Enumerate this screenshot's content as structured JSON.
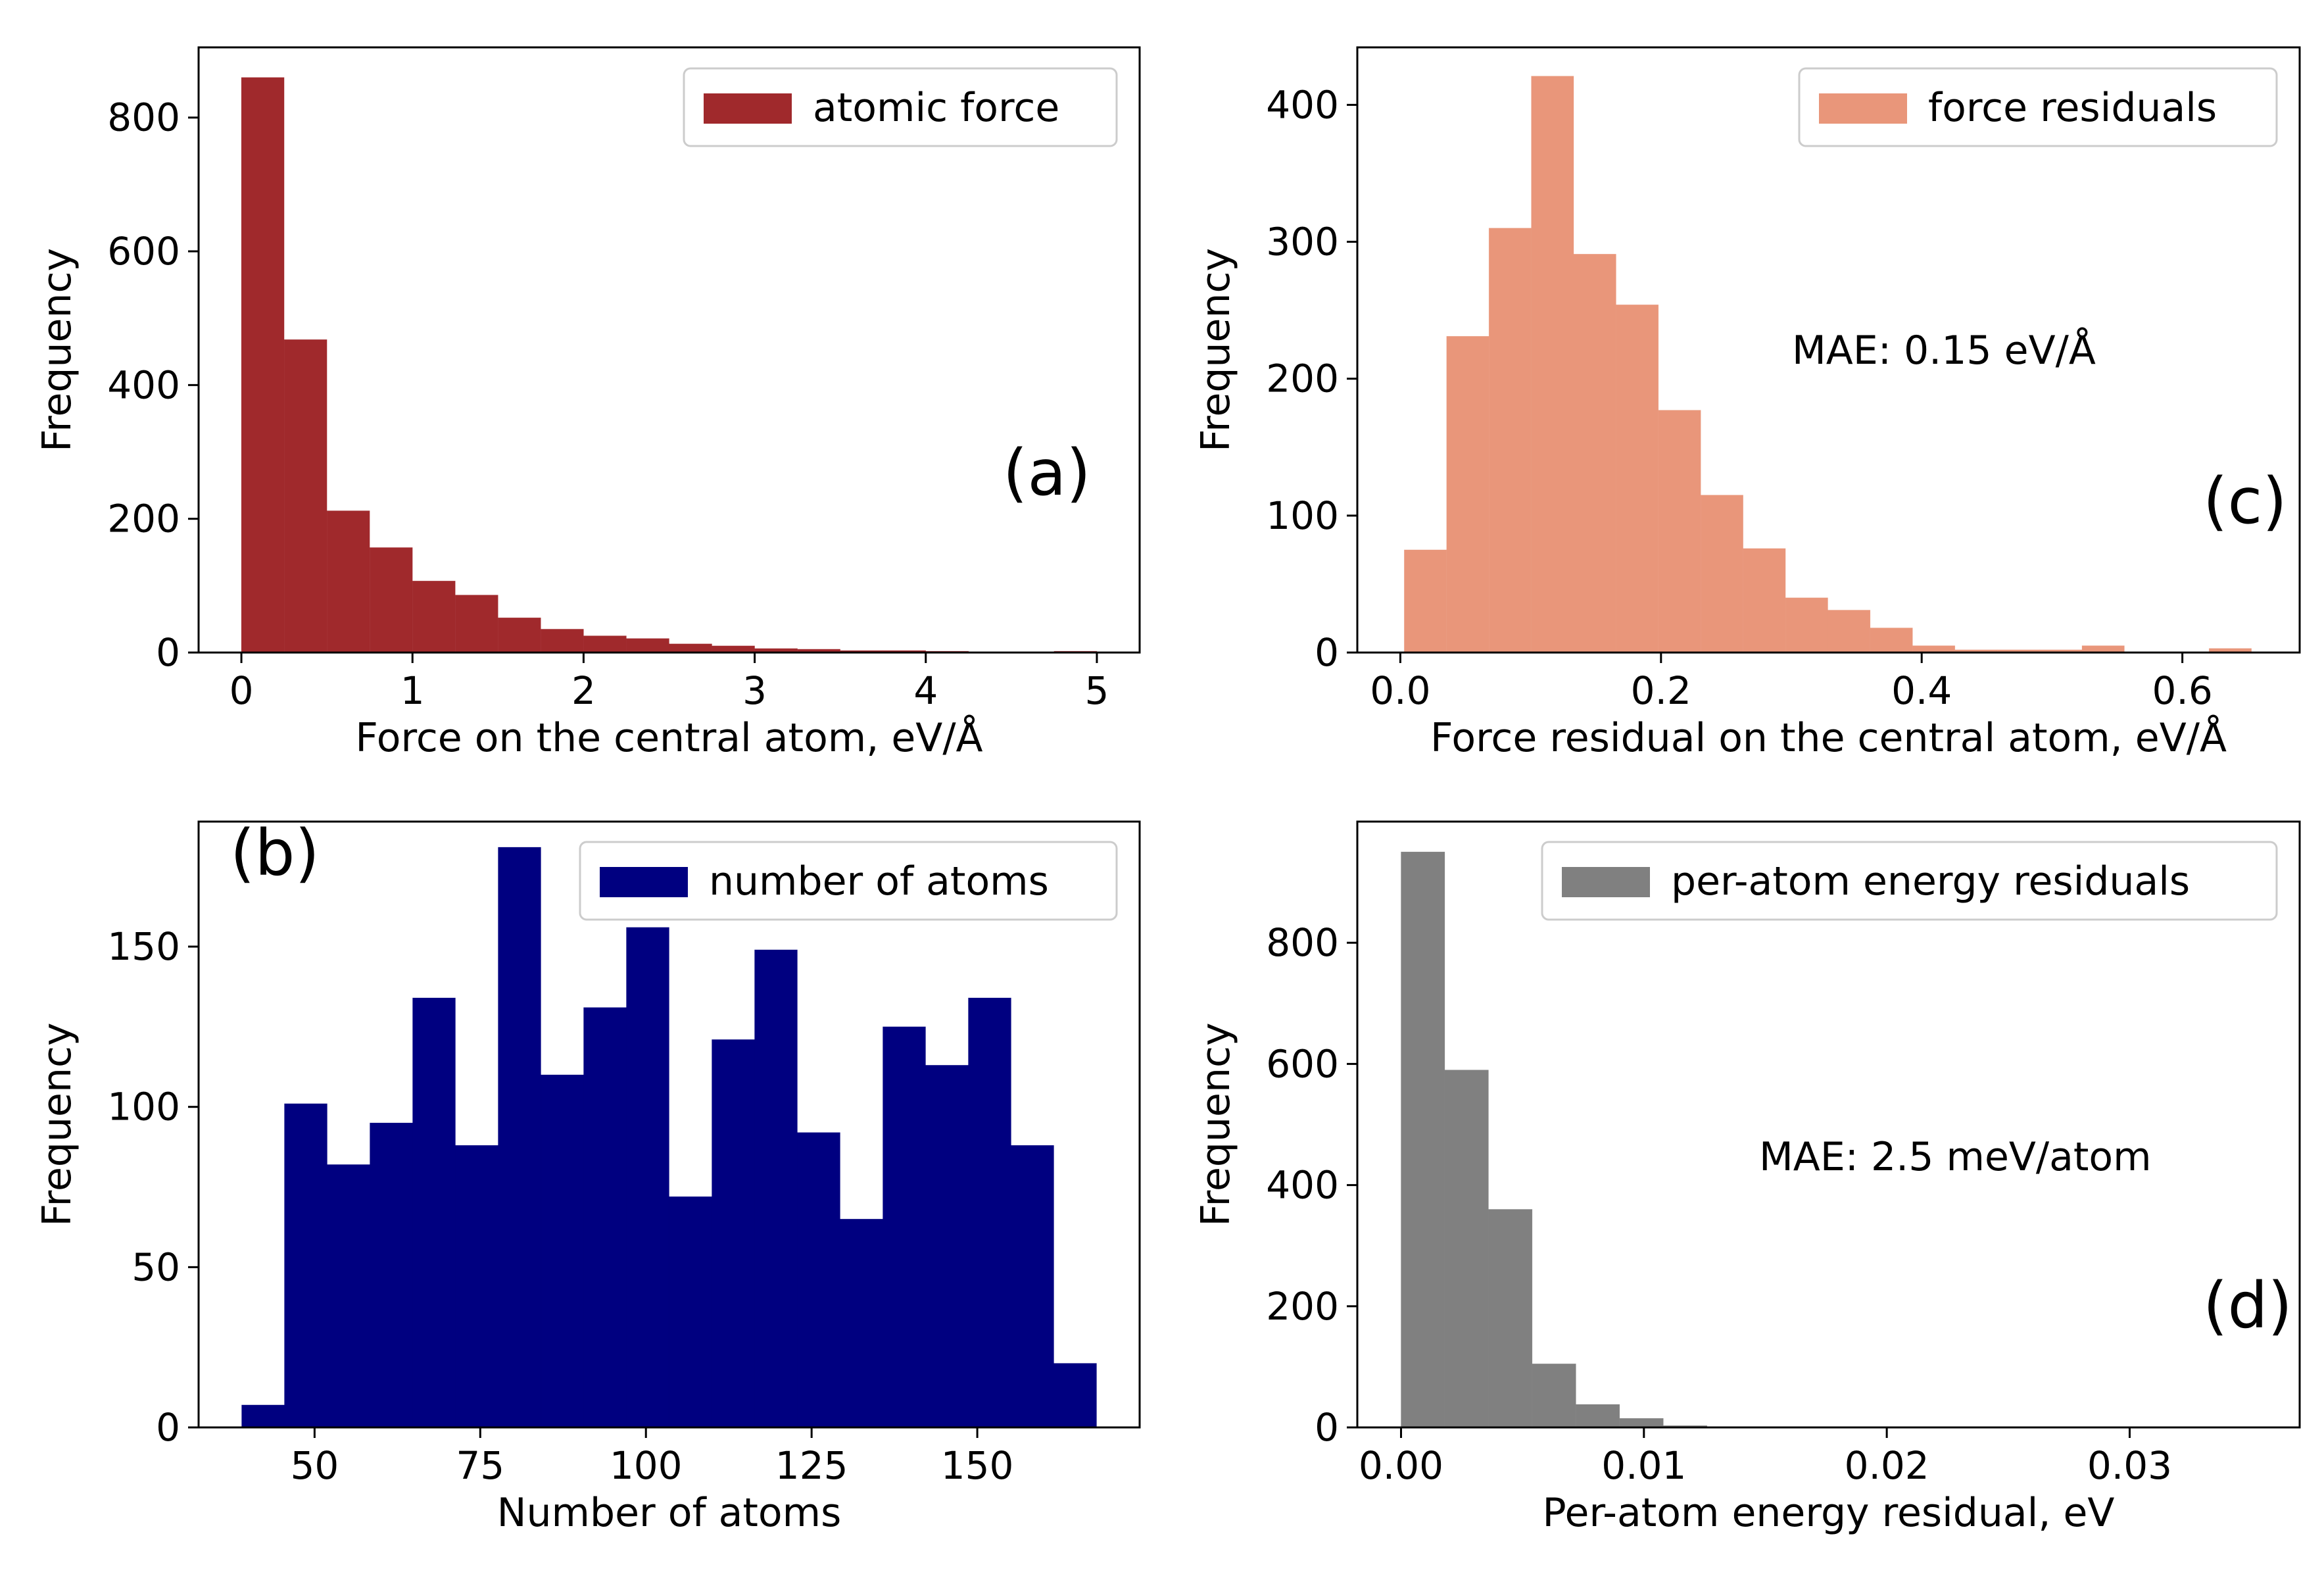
{
  "chart_data": [
    {
      "id": "a",
      "type": "bar",
      "panel_label": "(a)",
      "xlabel": "Force on the central atom, eV/Å",
      "ylabel": "Frequency",
      "xlim": [
        -0.25,
        5.25
      ],
      "ylim": [
        0,
        905
      ],
      "xticks": [
        0,
        1,
        2,
        3,
        4,
        5
      ],
      "yticks": [
        0,
        200,
        400,
        600,
        800
      ],
      "xtick_labels": [
        "0",
        "1",
        "2",
        "3",
        "4",
        "5"
      ],
      "ytick_labels": [
        "0",
        "200",
        "400",
        "600",
        "800"
      ],
      "bin_start": 0.0,
      "bin_width": 0.25,
      "values": [
        860,
        468,
        212,
        157,
        107,
        86,
        52,
        35,
        25,
        21,
        13,
        10,
        6,
        5,
        3,
        3,
        2,
        1,
        1,
        2
      ],
      "color": "#a0292c",
      "legend": {
        "label": "atomic force",
        "placement": "upper-right"
      },
      "annotation": "",
      "grid": false
    },
    {
      "id": "b",
      "type": "bar",
      "panel_label": "(b)",
      "xlabel": "Number of atoms",
      "ylabel": "Frequency",
      "xlim": [
        32.5,
        174.5
      ],
      "ylim": [
        0,
        189
      ],
      "xticks": [
        50,
        75,
        100,
        125,
        150
      ],
      "yticks": [
        0,
        50,
        100,
        150
      ],
      "xtick_labels": [
        "50",
        "75",
        "100",
        "125",
        "150"
      ],
      "ytick_labels": [
        "0",
        "50",
        "100",
        "150"
      ],
      "bin_start": 39,
      "bin_width": 6.45,
      "values": [
        7,
        101,
        82,
        95,
        134,
        88,
        181,
        110,
        131,
        156,
        72,
        121,
        149,
        92,
        65,
        125,
        113,
        134,
        88,
        20
      ],
      "color": "#000080",
      "legend": {
        "label": "number of atoms",
        "placement": "upper-right"
      },
      "annotation": "",
      "grid": false
    },
    {
      "id": "c",
      "type": "bar",
      "panel_label": "(c)",
      "xlabel": "Force residual on the central atom, eV/Å",
      "ylabel": "Frequency",
      "xlim": [
        -0.033,
        0.69
      ],
      "ylim": [
        0,
        442
      ],
      "xticks": [
        0.0,
        0.2,
        0.4,
        0.6
      ],
      "yticks": [
        0,
        100,
        200,
        300,
        400
      ],
      "xtick_labels": [
        "0.0",
        "0.2",
        "0.4",
        "0.6"
      ],
      "ytick_labels": [
        "0",
        "100",
        "200",
        "300",
        "400"
      ],
      "bin_start": 0.003,
      "bin_width": 0.0325,
      "values": [
        75,
        231,
        310,
        421,
        291,
        254,
        177,
        115,
        76,
        40,
        31,
        18,
        5,
        2,
        2,
        2,
        5,
        0,
        0,
        3
      ],
      "color": "#e9967a",
      "legend": {
        "label": "force residuals",
        "placement": "upper-right"
      },
      "annotation": "MAE: 0.15 eV/Å",
      "grid": false
    },
    {
      "id": "d",
      "type": "bar",
      "panel_label": "(d)",
      "xlabel": "Per-atom energy residual, eV",
      "ylabel": "Frequency",
      "xlim": [
        -0.0018,
        0.037
      ],
      "ylim": [
        0,
        1000
      ],
      "xticks": [
        0.0,
        0.01,
        0.02,
        0.03
      ],
      "yticks": [
        0,
        200,
        400,
        600,
        800
      ],
      "xtick_labels": [
        "0.00",
        "0.01",
        "0.02",
        "0.03"
      ],
      "ytick_labels": [
        "0",
        "200",
        "400",
        "600",
        "800"
      ],
      "bin_start": 0.0,
      "bin_width": 0.0018,
      "values": [
        950,
        590,
        360,
        105,
        38,
        15,
        3,
        1,
        1,
        0,
        0,
        0,
        0,
        0,
        0,
        0,
        0,
        0,
        0,
        0
      ],
      "color": "#808080",
      "legend": {
        "label": "per-atom energy residuals",
        "placement": "upper-right"
      },
      "annotation": "MAE: 2.5 meV/atom",
      "grid": false
    }
  ]
}
